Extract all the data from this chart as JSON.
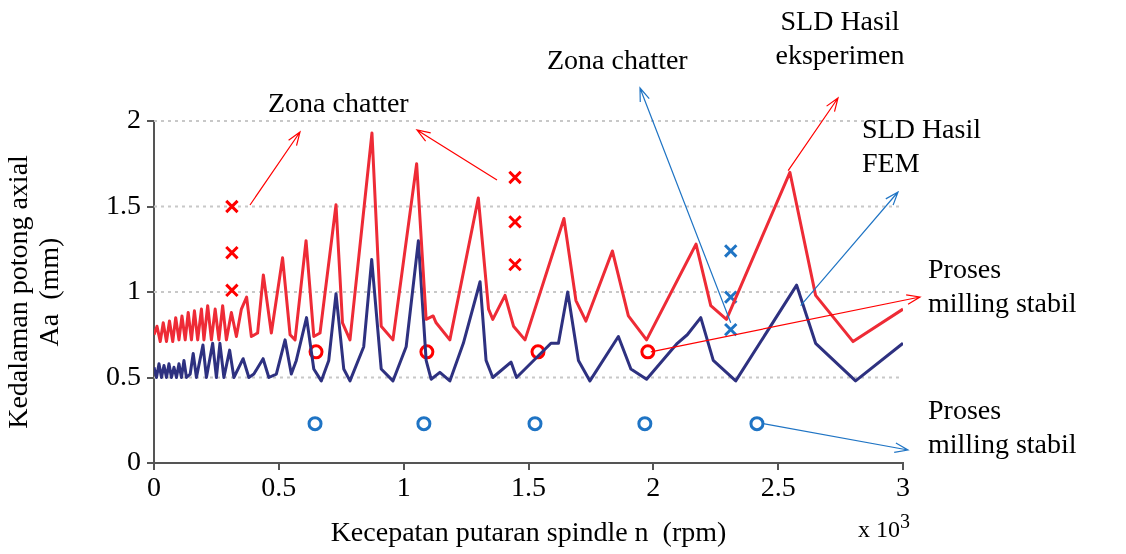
{
  "chart_data": {
    "type": "line",
    "xlabel": "Kecepatan putaran spindle n  (rpm)",
    "ylabel": "Kedalaman potong axial\nAa  (mm)",
    "xlim": [
      0,
      3
    ],
    "ylim": [
      0,
      2
    ],
    "xticks": [
      0,
      0.5,
      1,
      1.5,
      2,
      2.5,
      3
    ],
    "yticks": [
      0,
      0.5,
      1,
      1.5,
      2
    ],
    "grid": "y",
    "annotations": [
      "Zona chatter",
      {
        "text": "Zona chatter",
        "x": 2.31,
        "y": 0.82
      },
      {
        "text": "SLD Hasil\neksperimen",
        "x": 2.54,
        "y": 1.71
      },
      {
        "text": "SLD Hasil\nFEM",
        "x": 2.59,
        "y": 0.92
      },
      {
        "text": "Proses\nmilling stabil",
        "x": 1.99,
        "y": 0.65
      },
      {
        "text": "Proses\nmilling stabil",
        "x": 2.44,
        "y": 0.23
      },
      "x 10$^{3}$"
    ],
    "series": [
      {
        "type": "line",
        "marker": "none",
        "color": "#ee2b36",
        "x": [
          0,
          0.012,
          0.025,
          0.037,
          0.05,
          0.062,
          0.075,
          0.087,
          0.1,
          0.112,
          0.125,
          0.137,
          0.15,
          0.162,
          0.175,
          0.19,
          0.2,
          0.215,
          0.23,
          0.245,
          0.26,
          0.275,
          0.29,
          0.31,
          0.33,
          0.35,
          0.371,
          0.39,
          0.415,
          0.438,
          0.47,
          0.515,
          0.545,
          0.565,
          0.609,
          0.64,
          0.665,
          0.729,
          0.755,
          0.785,
          0.873,
          0.91,
          0.957,
          1.052,
          1.09,
          1.118,
          1.13,
          1.185,
          1.299,
          1.34,
          1.357,
          1.406,
          1.44,
          1.486,
          1.642,
          1.69,
          1.73,
          1.836,
          1.9,
          1.973,
          2.171,
          2.23,
          2.293,
          2.547,
          2.65,
          2.8,
          3.0
        ],
        "values": [
          0.75,
          0.8,
          0.71,
          0.82,
          0.71,
          0.83,
          0.71,
          0.85,
          0.72,
          0.86,
          0.72,
          0.88,
          0.72,
          0.89,
          0.72,
          0.9,
          0.72,
          0.92,
          0.72,
          0.9,
          0.72,
          0.92,
          0.72,
          0.88,
          0.74,
          0.9,
          0.97,
          0.74,
          0.76,
          1.1,
          0.76,
          1.2,
          0.75,
          0.72,
          1.3,
          0.74,
          0.76,
          1.51,
          0.82,
          0.72,
          1.93,
          0.8,
          0.72,
          1.75,
          0.84,
          0.86,
          0.82,
          0.72,
          1.55,
          0.9,
          0.84,
          0.98,
          0.8,
          0.72,
          1.43,
          0.95,
          0.83,
          1.24,
          0.86,
          0.72,
          1.28,
          0.92,
          0.84,
          1.7,
          0.98,
          0.71,
          0.9
        ]
      },
      {
        "type": "line",
        "marker": "none",
        "color": "#2e3180",
        "x": [
          0,
          0.01,
          0.02,
          0.03,
          0.04,
          0.05,
          0.06,
          0.07,
          0.08,
          0.09,
          0.1,
          0.11,
          0.12,
          0.13,
          0.145,
          0.157,
          0.17,
          0.196,
          0.21,
          0.235,
          0.25,
          0.264,
          0.28,
          0.303,
          0.32,
          0.357,
          0.38,
          0.4,
          0.437,
          0.46,
          0.49,
          0.525,
          0.55,
          0.57,
          0.611,
          0.64,
          0.67,
          0.7,
          0.729,
          0.76,
          0.785,
          0.84,
          0.872,
          0.91,
          0.957,
          1.01,
          1.059,
          1.09,
          1.11,
          1.145,
          1.185,
          1.239,
          1.306,
          1.33,
          1.357,
          1.43,
          1.452,
          1.59,
          1.62,
          1.657,
          1.7,
          1.746,
          1.86,
          1.91,
          1.973,
          2.096,
          2.136,
          2.19,
          2.24,
          2.33,
          2.574,
          2.65,
          2.81,
          3.0
        ],
        "values": [
          0.56,
          0.5,
          0.58,
          0.5,
          0.57,
          0.5,
          0.58,
          0.5,
          0.56,
          0.5,
          0.58,
          0.5,
          0.6,
          0.5,
          0.52,
          0.64,
          0.5,
          0.69,
          0.5,
          0.7,
          0.5,
          0.7,
          0.5,
          0.66,
          0.5,
          0.61,
          0.5,
          0.52,
          0.61,
          0.5,
          0.52,
          0.72,
          0.52,
          0.6,
          0.85,
          0.55,
          0.48,
          0.6,
          0.99,
          0.55,
          0.48,
          0.68,
          1.19,
          0.55,
          0.48,
          0.68,
          1.3,
          0.6,
          0.49,
          0.53,
          0.48,
          0.7,
          1.06,
          0.6,
          0.5,
          0.59,
          0.5,
          0.7,
          0.7,
          1.0,
          0.6,
          0.48,
          0.74,
          0.55,
          0.49,
          0.7,
          0.75,
          0.85,
          0.6,
          0.48,
          1.04,
          0.7,
          0.48,
          0.7
        ]
      },
      {
        "type": "scatter",
        "marker": "cross",
        "color": "#ff0000",
        "x": [
          0.312,
          0.312,
          0.312,
          1.446,
          1.446,
          1.446
        ],
        "values": [
          1.5,
          1.23,
          1.01,
          1.67,
          1.41,
          1.16
        ]
      },
      {
        "type": "scatter",
        "marker": "cross",
        "color": "#1f74c4",
        "x": [
          2.31,
          2.31,
          2.31
        ],
        "values": [
          1.24,
          0.97,
          0.78
        ]
      },
      {
        "type": "scatter",
        "marker": "circle",
        "color": "#ff0000",
        "x": [
          0.649,
          1.093,
          1.538,
          1.978
        ],
        "values": [
          0.65,
          0.65,
          0.65,
          0.65
        ]
      },
      {
        "type": "scatter",
        "marker": "circle",
        "color": "#1f74c4",
        "x": [
          0.645,
          1.081,
          1.526,
          1.966,
          2.415
        ],
        "values": [
          0.23,
          0.23,
          0.23,
          0.23,
          0.23
        ]
      }
    ]
  }
}
